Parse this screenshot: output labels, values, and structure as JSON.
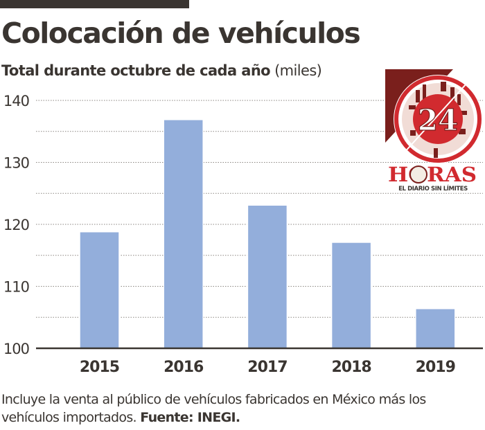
{
  "header": {
    "title": "Colocación de vehículos",
    "subtitle_bold": "Total durante octubre de cada año",
    "subtitle_unit": "(miles)"
  },
  "logo": {
    "number": "24",
    "name": "HORAS",
    "tagline": "EL DIARIO SIN LÍMITES",
    "colors": {
      "red": "#d12a2f",
      "dark_red": "#7a1f1c"
    }
  },
  "footnote": {
    "text": "Incluye la venta al público de vehículos fabricados en México más los vehículos importados.",
    "source": "Fuente: INEGI."
  },
  "chart_data": {
    "type": "bar",
    "title": "Colocación de vehículos",
    "subtitle": "Total durante octubre de cada año (miles)",
    "xlabel": "",
    "ylabel": "(miles)",
    "categories": [
      "2015",
      "2016",
      "2017",
      "2018",
      "2019"
    ],
    "values": [
      118.8,
      136.9,
      123.1,
      117.1,
      106.4
    ],
    "ylim": [
      100,
      140
    ],
    "yticks": [
      100,
      110,
      120,
      130,
      140
    ],
    "ytick_labels": [
      "100",
      "110",
      "120",
      "130",
      "140"
    ],
    "minor_gridlines": [
      105,
      115,
      125,
      135
    ],
    "grid": true,
    "bar_color": "#93aedb"
  }
}
